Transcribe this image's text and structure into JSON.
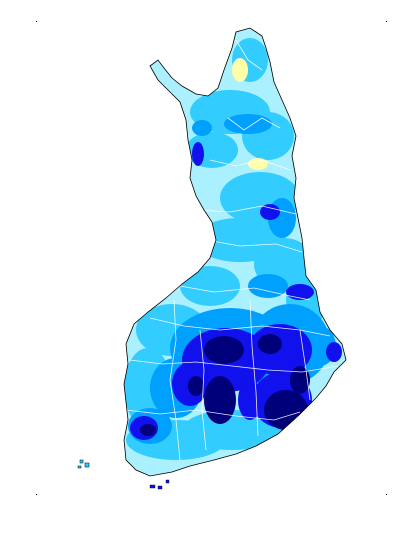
{
  "map": {
    "palette": {
      "background": "#ffffff",
      "outline": "#000000",
      "region_borders": "#ffffff",
      "class_1": "#ffffaa",
      "class_2": "#aaf0ff",
      "class_3": "#33ccff",
      "class_4": "#00a0ff",
      "class_5": "#1111ee",
      "class_6": "#00007a"
    },
    "icons": {
      "corner_marker": "corner-dot-icon"
    }
  }
}
